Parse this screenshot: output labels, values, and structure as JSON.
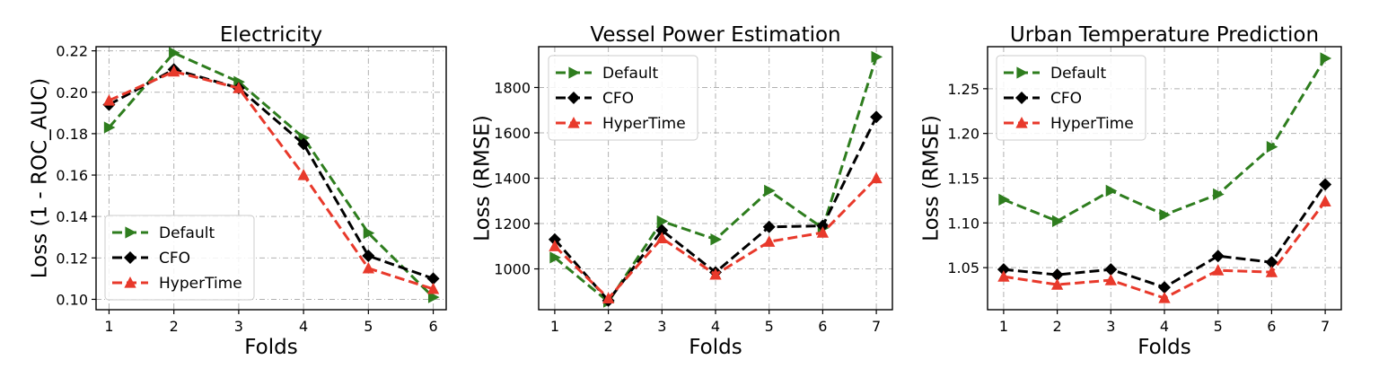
{
  "chart_data": [
    {
      "type": "line",
      "title": "Electricity",
      "xlabel": "Folds",
      "ylabel": "Loss (1 - ROC_AUC)",
      "x": [
        1,
        2,
        3,
        4,
        5,
        6
      ],
      "xlim": [
        0.8,
        6.2
      ],
      "ylim": [
        0.095,
        0.222
      ],
      "yticks": [
        0.1,
        0.12,
        0.14,
        0.16,
        0.18,
        0.2,
        0.22
      ],
      "ytick_labels": [
        "0.10",
        "0.12",
        "0.14",
        "0.16",
        "0.18",
        "0.20",
        "0.22"
      ],
      "grid": true,
      "legend_loc": "lower-left",
      "series": [
        {
          "name": "Default",
          "color": "#2e7d1e",
          "marker": "triangle-right",
          "values": [
            0.183,
            0.219,
            0.205,
            0.178,
            0.132,
            0.101
          ]
        },
        {
          "name": "CFO",
          "color": "#000000",
          "marker": "diamond",
          "values": [
            0.194,
            0.211,
            0.202,
            0.175,
            0.121,
            0.11
          ]
        },
        {
          "name": "HyperTime",
          "color": "#e8392b",
          "marker": "triangle-up",
          "values": [
            0.196,
            0.21,
            0.202,
            0.16,
            0.115,
            0.105
          ]
        }
      ]
    },
    {
      "type": "line",
      "title": "Vessel Power Estimation",
      "xlabel": "Folds",
      "ylabel": "Loss (RMSE)",
      "x": [
        1,
        2,
        3,
        4,
        5,
        6,
        7
      ],
      "xlim": [
        0.7,
        7.3
      ],
      "ylim": [
        820,
        1980
      ],
      "yticks": [
        1000,
        1200,
        1400,
        1600,
        1800
      ],
      "ytick_labels": [
        "1000",
        "1200",
        "1400",
        "1600",
        "1800"
      ],
      "grid": true,
      "legend_loc": "upper-left",
      "series": [
        {
          "name": "Default",
          "color": "#2e7d1e",
          "marker": "triangle-right",
          "values": [
            1050,
            855,
            1210,
            1130,
            1345,
            1180,
            1935
          ]
        },
        {
          "name": "CFO",
          "color": "#000000",
          "marker": "diamond",
          "values": [
            1130,
            860,
            1170,
            985,
            1185,
            1190,
            1670
          ]
        },
        {
          "name": "HyperTime",
          "color": "#e8392b",
          "marker": "triangle-up",
          "values": [
            1100,
            870,
            1135,
            975,
            1120,
            1160,
            1400
          ]
        }
      ]
    },
    {
      "type": "line",
      "title": "Urban Temperature Prediction",
      "xlabel": "Folds",
      "ylabel": "Loss (RMSE)",
      "x": [
        1,
        2,
        3,
        4,
        5,
        6,
        7
      ],
      "xlim": [
        0.7,
        7.3
      ],
      "ylim": [
        1.003,
        1.297
      ],
      "yticks": [
        1.05,
        1.1,
        1.15,
        1.2,
        1.25
      ],
      "ytick_labels": [
        "1.05",
        "1.10",
        "1.15",
        "1.20",
        "1.25"
      ],
      "grid": true,
      "legend_loc": "upper-left",
      "series": [
        {
          "name": "Default",
          "color": "#2e7d1e",
          "marker": "triangle-right",
          "values": [
            1.126,
            1.102,
            1.136,
            1.109,
            1.132,
            1.185,
            1.284
          ]
        },
        {
          "name": "CFO",
          "color": "#000000",
          "marker": "diamond",
          "values": [
            1.048,
            1.042,
            1.048,
            1.028,
            1.063,
            1.056,
            1.143
          ]
        },
        {
          "name": "HyperTime",
          "color": "#e8392b",
          "marker": "triangle-up",
          "values": [
            1.04,
            1.031,
            1.036,
            1.016,
            1.047,
            1.045,
            1.124
          ]
        }
      ]
    }
  ]
}
